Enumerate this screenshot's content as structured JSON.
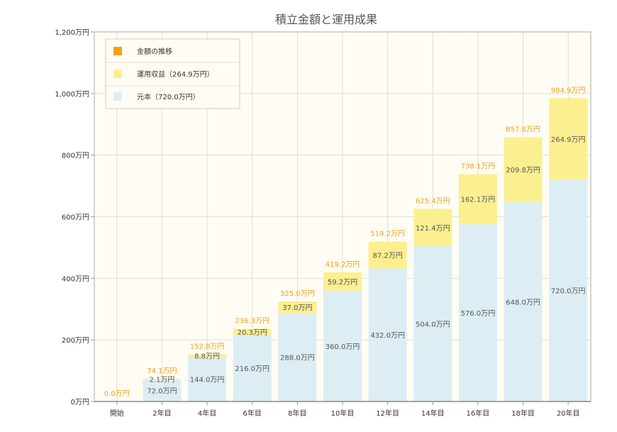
{
  "chart_data": {
    "type": "bar",
    "stacked": true,
    "title": "積立金額と運用成果",
    "categories": [
      "開始",
      "2年目",
      "4年目",
      "6年目",
      "8年目",
      "10年目",
      "12年目",
      "14年目",
      "16年目",
      "18年目",
      "20年目"
    ],
    "series": [
      {
        "name": "元本（720.0万円）",
        "color": "#ddedf4",
        "values": [
          0,
          72.0,
          144.0,
          216.0,
          288.0,
          360.0,
          432.0,
          504.0,
          576.0,
          648.0,
          720.0
        ],
        "labels": [
          "",
          "72.0万円",
          "144.0万円",
          "216.0万円",
          "288.0万円",
          "360.0万円",
          "432.0万円",
          "504.0万円",
          "576.0万円",
          "648.0万円",
          "720.0万円"
        ]
      },
      {
        "name": "運用収益（264.9万円）",
        "color": "#fcef8f",
        "values": [
          0,
          2.1,
          8.8,
          20.3,
          37.0,
          59.2,
          87.2,
          121.4,
          162.1,
          209.8,
          264.9
        ],
        "labels": [
          "",
          "2.1万円",
          "8.8万円",
          "20.3万円",
          "37.0万円",
          "59.2万円",
          "87.2万円",
          "121.4万円",
          "162.1万円",
          "209.8万円",
          "264.9万円"
        ]
      }
    ],
    "line_series": {
      "name": "金額の推移",
      "color": "#f4a11a",
      "values": [
        0.0,
        74.1,
        152.8,
        236.3,
        325.0,
        419.2,
        519.2,
        625.4,
        738.1,
        857.8,
        984.9
      ],
      "labels": [
        "0.0万円",
        "74.1万円",
        "152.8万円",
        "236.3万円",
        "325.0万円",
        "419.2万円",
        "519.2万円",
        "625.4万円",
        "738.1万円",
        "857.8万円",
        "984.9万円"
      ]
    },
    "ylim": [
      0,
      1200
    ],
    "yticks": [
      0,
      200,
      400,
      600,
      800,
      1000,
      1200
    ],
    "ytick_labels": [
      "0万円",
      "200万円",
      "400万円",
      "600万円",
      "800万円",
      "1,000万円",
      "1,200万円"
    ],
    "grid": true,
    "legend_position": "top-left",
    "background_color": "#fffdf3"
  }
}
